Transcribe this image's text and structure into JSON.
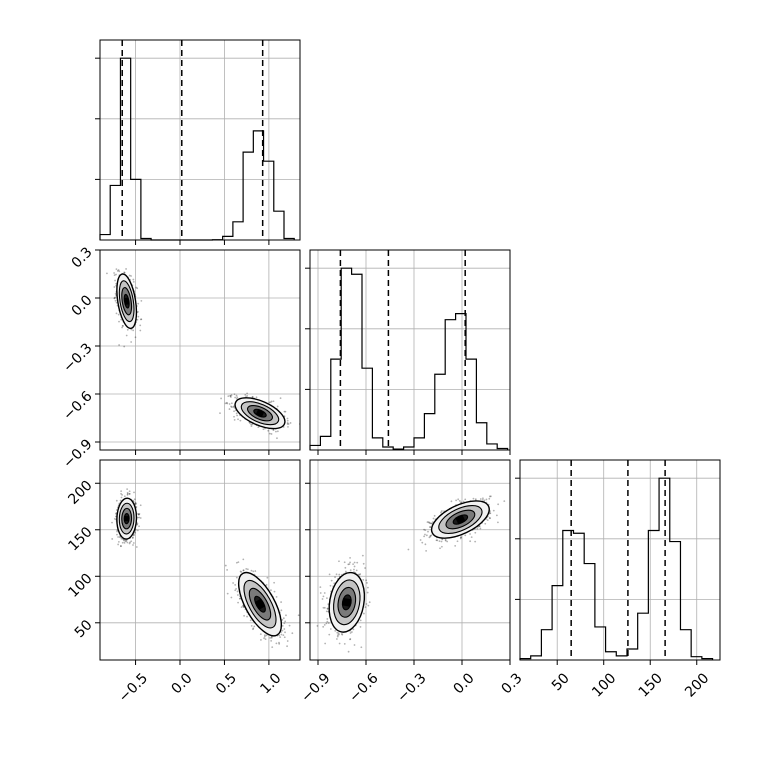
{
  "chart_data": {
    "type": "corner",
    "parameters": [
      "",
      "",
      ""
    ],
    "axes": [
      {
        "range": [
          -0.9,
          1.35
        ],
        "ticks": [
          -0.5,
          0.0,
          0.5,
          1.0
        ],
        "tick_labels": [
          "−0.5",
          "0.0",
          "0.5",
          "1.0"
        ]
      },
      {
        "range": [
          -0.95,
          0.3
        ],
        "ticks": [
          -0.9,
          -0.6,
          -0.3,
          0.0,
          0.3
        ],
        "tick_labels": [
          "−0.9",
          "−0.6",
          "−0.3",
          "0.0",
          "0.3"
        ]
      },
      {
        "range": [
          10,
          225
        ],
        "ticks": [
          50,
          100,
          150,
          200
        ],
        "tick_labels": [
          "50",
          "100",
          "150",
          "200"
        ]
      }
    ],
    "histograms": [
      {
        "param": 0,
        "bin_edges": [
          -0.9,
          -0.785,
          -0.67,
          -0.555,
          -0.44,
          -0.325,
          -0.21,
          -0.095,
          0.02,
          0.135,
          0.25,
          0.365,
          0.48,
          0.595,
          0.71,
          0.825,
          0.94,
          1.055,
          1.17,
          1.285
        ],
        "counts": [
          1.8,
          18,
          60,
          20,
          0.5,
          0,
          0,
          0,
          0,
          0,
          0,
          0.1,
          1.2,
          6,
          29,
          36,
          26,
          9.5,
          0.5
        ],
        "quantiles": [
          -0.65,
          0.02,
          0.93
        ]
      },
      {
        "param": 1,
        "bin_edges": [
          -0.95,
          -0.885,
          -0.82,
          -0.755,
          -0.69,
          -0.625,
          -0.56,
          -0.495,
          -0.43,
          -0.365,
          -0.3,
          -0.235,
          -0.17,
          -0.105,
          -0.04,
          0.025,
          0.09,
          0.155,
          0.22,
          0.285
        ],
        "counts": [
          1.5,
          4.5,
          30,
          60,
          58,
          27,
          4,
          1,
          0.3,
          1,
          4,
          12,
          25,
          43,
          45,
          30,
          9,
          2,
          0.5
        ],
        "quantiles": [
          -0.76,
          -0.46,
          0.02
        ]
      },
      {
        "param": 2,
        "bin_edges": [
          10,
          21.5,
          33,
          44.5,
          56,
          67.5,
          79,
          90.5,
          102,
          113.5,
          125,
          136.5,
          148,
          159.5,
          171,
          182.5,
          194,
          205.5,
          217
        ],
        "counts": [
          0.5,
          1.5,
          11,
          27,
          47,
          46,
          35,
          12,
          3,
          1.5,
          4,
          17,
          47,
          66,
          43,
          11,
          1.2,
          0.5
        ],
        "quantiles": [
          65,
          126,
          166
        ]
      }
    ],
    "scatter_2d": [
      {
        "x_param": 0,
        "y_param": 1,
        "clusters": [
          {
            "center": [
              -0.6,
              -0.02
            ],
            "sd": [
              0.055,
              0.085
            ],
            "corr": -0.4
          },
          {
            "center": [
              0.9,
              -0.72
            ],
            "sd": [
              0.14,
              0.048
            ],
            "corr": -0.55
          }
        ]
      },
      {
        "x_param": 0,
        "y_param": 2,
        "clusters": [
          {
            "center": [
              -0.6,
              162
            ],
            "sd": [
              0.055,
              11
            ],
            "corr": 0.05
          },
          {
            "center": [
              0.9,
              70
            ],
            "sd": [
              0.12,
              17
            ],
            "corr": -0.65
          }
        ]
      },
      {
        "x_param": 1,
        "y_param": 2,
        "clusters": [
          {
            "center": [
              -0.72,
              72
            ],
            "sd": [
              0.055,
              16
            ],
            "corr": 0.2
          },
          {
            "center": [
              -0.01,
              161
            ],
            "sd": [
              0.09,
              10
            ],
            "corr": 0.55
          }
        ]
      }
    ],
    "contour_sigma_levels": [
      0.5,
      1.0,
      1.5,
      2.0
    ],
    "grid": true
  }
}
